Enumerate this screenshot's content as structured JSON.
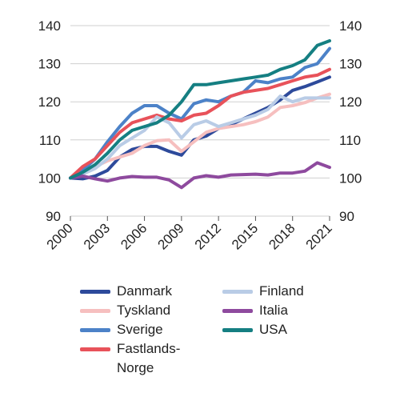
{
  "chart_data": {
    "type": "line",
    "title": "",
    "xlabel": "",
    "ylabel": "",
    "x": [
      2000,
      2001,
      2002,
      2003,
      2004,
      2005,
      2006,
      2007,
      2008,
      2009,
      2010,
      2011,
      2012,
      2013,
      2014,
      2015,
      2016,
      2017,
      2018,
      2019,
      2020,
      2021
    ],
    "x_tick_labels": [
      "2000",
      "2003",
      "2006",
      "2009",
      "2012",
      "2015",
      "2018",
      "2021"
    ],
    "x_tick_values": [
      2000,
      2003,
      2006,
      2009,
      2012,
      2015,
      2018,
      2021
    ],
    "y_ticks": [
      90,
      100,
      110,
      120,
      130,
      140
    ],
    "ylim": [
      90,
      140
    ],
    "y_axis_both_sides": true,
    "grid": "horizontal",
    "legend_position": "bottom",
    "series": [
      {
        "name": "Danmark",
        "color": "#2d4a9b",
        "values": [
          100,
          99.8,
          100.5,
          102,
          105.5,
          107.5,
          108.3,
          108.3,
          107,
          106,
          110,
          111,
          113,
          114,
          115.5,
          117,
          118.5,
          120.5,
          123,
          124,
          125.2,
          126.5
        ]
      },
      {
        "name": "Tyskland",
        "color": "#f6bfbf",
        "values": [
          100,
          101.5,
          103,
          104.5,
          105.5,
          106.5,
          108.5,
          109.8,
          110,
          107,
          109.5,
          112,
          113,
          113.5,
          114,
          114.8,
          116,
          118.5,
          119,
          119.8,
          121,
          122
        ]
      },
      {
        "name": "Sverige",
        "color": "#4c82c8",
        "values": [
          100,
          102,
          105,
          109.5,
          113.5,
          117,
          119,
          119,
          117,
          115.5,
          119.5,
          120.5,
          120,
          121.5,
          122.5,
          125.5,
          125,
          126,
          126.5,
          129,
          130,
          134
        ]
      },
      {
        "name": "Fastlands-\nNorge",
        "color": "#e8525a",
        "values": [
          100,
          103,
          105,
          108.5,
          112,
          114.5,
          115.5,
          116.5,
          115.5,
          115,
          116.5,
          117,
          119,
          121.5,
          122.5,
          123,
          123.5,
          124.5,
          125.5,
          126.5,
          127,
          128.5
        ]
      },
      {
        "name": "Finland",
        "color": "#b9cce6",
        "values": [
          100,
          101,
          102.5,
          105,
          108.5,
          110.5,
          112.5,
          116,
          114.5,
          110.5,
          114,
          115,
          113.5,
          114.5,
          115.5,
          116.5,
          118,
          121.5,
          120,
          121,
          121,
          121
        ]
      },
      {
        "name": "Italia",
        "color": "#8e4a9e",
        "values": [
          100,
          100.5,
          99.8,
          99.2,
          100,
          100.4,
          100.2,
          100.2,
          99.5,
          97.5,
          100,
          100.6,
          100.2,
          100.8,
          100.9,
          101,
          100.8,
          101.3,
          101.3,
          101.8,
          104,
          102.8
        ]
      },
      {
        "name": "USA",
        "color": "#157f82",
        "values": [
          100,
          101.5,
          103.5,
          106.5,
          110,
          112.5,
          113.5,
          114.5,
          116.5,
          120,
          124.5,
          124.5,
          125,
          125.5,
          126,
          126.5,
          127,
          128.5,
          129.5,
          131,
          134.8,
          136
        ]
      }
    ],
    "legend_layout": [
      [
        "Danmark",
        "Tyskland",
        "Sverige",
        "Fastlands-\nNorge"
      ],
      [
        "Finland",
        "Italia",
        "USA"
      ]
    ]
  }
}
